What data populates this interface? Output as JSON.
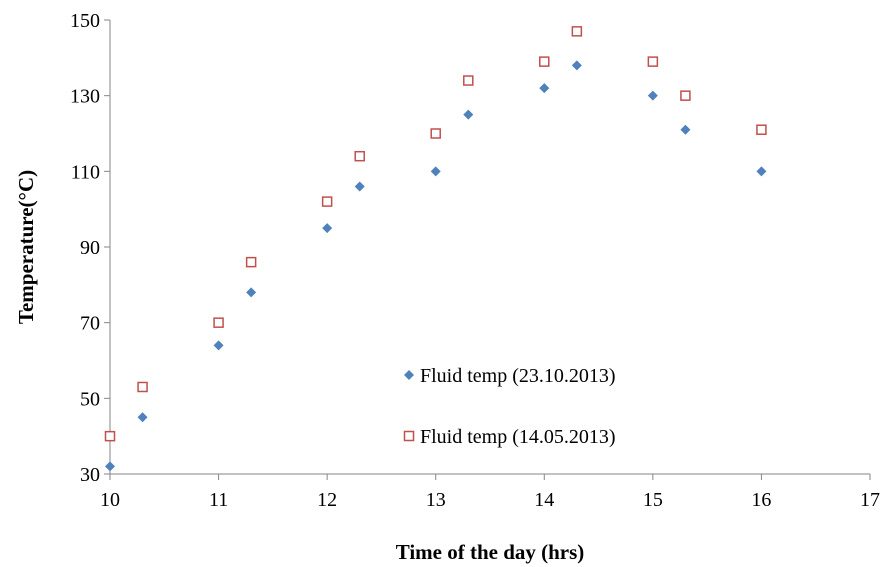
{
  "chart_data": {
    "type": "scatter",
    "title": "",
    "xlabel": "Time of the day (hrs)",
    "ylabel": "Temperature(°C)",
    "xlim": [
      10,
      17
    ],
    "ylim": [
      30,
      150
    ],
    "x_ticks": [
      10,
      11,
      12,
      13,
      14,
      15,
      16,
      17
    ],
    "y_ticks": [
      30,
      50,
      70,
      90,
      110,
      130,
      150
    ],
    "x_tick_labels": [
      "10",
      "11",
      "12",
      "13",
      "14",
      "15",
      "16",
      "17"
    ],
    "y_tick_labels": [
      "30",
      "50",
      "70",
      "90",
      "110",
      "130",
      "150"
    ],
    "grid": false,
    "legend_position": "center-right inside plot",
    "series": [
      {
        "name": "Fluid temp (23.10.2013)",
        "marker": "diamond",
        "color": "#4f81bd",
        "x": [
          10.0,
          10.3,
          11.0,
          11.3,
          12.0,
          12.3,
          13.0,
          13.3,
          14.0,
          14.3,
          15.0,
          15.3,
          16.0
        ],
        "y": [
          32,
          45,
          64,
          78,
          95,
          106,
          110,
          125,
          132,
          138,
          130,
          121,
          110
        ]
      },
      {
        "name": "Fluid temp (14.05.2013)",
        "marker": "square-open",
        "color": "#c0504d",
        "x": [
          10.0,
          10.3,
          11.0,
          11.3,
          12.0,
          12.3,
          13.0,
          13.3,
          14.0,
          14.3,
          15.0,
          15.3,
          16.0
        ],
        "y": [
          40,
          53,
          70,
          86,
          102,
          114,
          120,
          134,
          139,
          147,
          139,
          130,
          121
        ]
      }
    ]
  }
}
